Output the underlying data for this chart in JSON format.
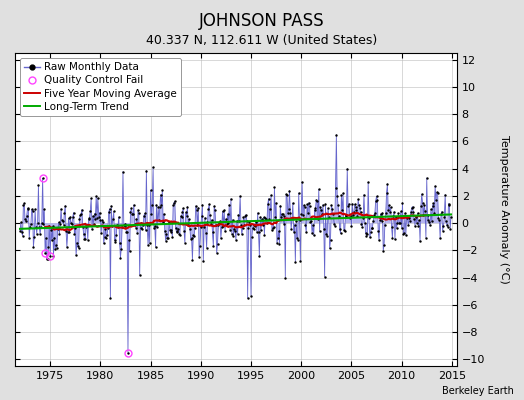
{
  "title": "JOHNSON PASS",
  "subtitle": "40.337 N, 112.611 W (United States)",
  "ylabel": "Temperature Anomaly (°C)",
  "credit": "Berkeley Earth",
  "xlim": [
    1971.5,
    2015.5
  ],
  "ylim": [
    -10.5,
    12.5
  ],
  "yticks": [
    -10,
    -8,
    -6,
    -4,
    -2,
    0,
    2,
    4,
    6,
    8,
    10,
    12
  ],
  "xticks": [
    1975,
    1980,
    1985,
    1990,
    1995,
    2000,
    2005,
    2010,
    2015
  ],
  "raw_line_color": "#6666cc",
  "raw_fill_color": "#aaaaee",
  "dot_color": "#000000",
  "ma_color": "#cc0000",
  "trend_color": "#00aa00",
  "qc_color": "#ff44ff",
  "background_color": "#e0e0e0",
  "plot_bg_color": "#ffffff",
  "grid_color": "#bbbbbb",
  "title_fontsize": 12,
  "subtitle_fontsize": 9,
  "tick_fontsize": 8,
  "label_fontsize": 8,
  "legend_fontsize": 7.5,
  "credit_fontsize": 7
}
